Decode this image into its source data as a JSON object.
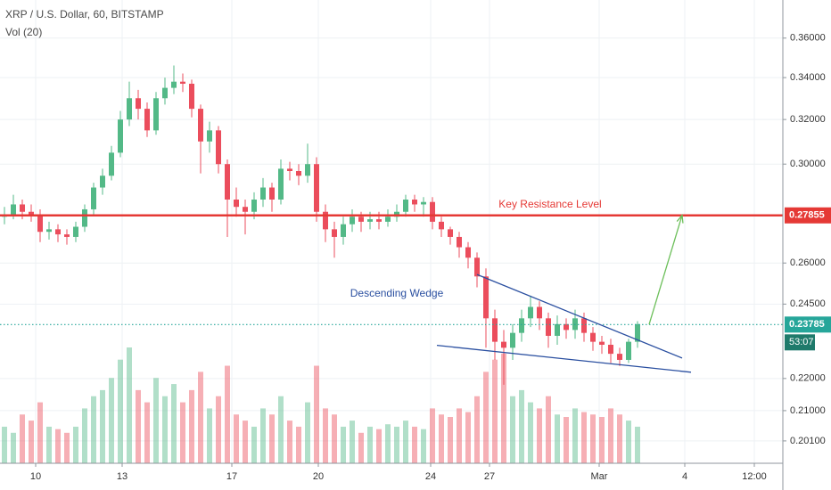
{
  "chart_data": {
    "type": "candlestick",
    "title": "XRP / U.S. Dollar, 60, BITSTAMP",
    "subtitle": "Vol (20)",
    "x": [
      0,
      1,
      2,
      3,
      4,
      5,
      6,
      7,
      8,
      9,
      10,
      11,
      12,
      13,
      14,
      15,
      16,
      17,
      18,
      19,
      20,
      21,
      22,
      23,
      24,
      25,
      26,
      27,
      28,
      29,
      30,
      31,
      32,
      33,
      34,
      35,
      36,
      37,
      38,
      39,
      40,
      41,
      42,
      43,
      44,
      45,
      46,
      47,
      48,
      49,
      50,
      51,
      52,
      53,
      54,
      55,
      56,
      57,
      58,
      59,
      60,
      61,
      62,
      63,
      64,
      65,
      66,
      67,
      68,
      69,
      70,
      71
    ],
    "open": [
      0.278,
      0.279,
      0.283,
      0.28,
      0.279,
      0.272,
      0.273,
      0.271,
      0.27,
      0.274,
      0.281,
      0.29,
      0.295,
      0.305,
      0.32,
      0.33,
      0.325,
      0.315,
      0.33,
      0.335,
      0.338,
      0.337,
      0.325,
      0.31,
      0.315,
      0.3,
      0.285,
      0.282,
      0.28,
      0.285,
      0.29,
      0.285,
      0.298,
      0.297,
      0.295,
      0.3,
      0.28,
      0.273,
      0.27,
      0.275,
      0.278,
      0.276,
      0.277,
      0.276,
      0.278,
      0.28,
      0.285,
      0.283,
      0.284,
      0.276,
      0.273,
      0.27,
      0.266,
      0.262,
      0.255,
      0.24,
      0.232,
      0.23,
      0.235,
      0.24,
      0.244,
      0.24,
      0.234,
      0.238,
      0.236,
      0.24,
      0.235,
      0.232,
      0.231,
      0.228,
      0.226,
      0.232
    ],
    "high": [
      0.282,
      0.287,
      0.285,
      0.283,
      0.281,
      0.276,
      0.275,
      0.273,
      0.276,
      0.283,
      0.292,
      0.298,
      0.308,
      0.324,
      0.338,
      0.334,
      0.328,
      0.333,
      0.34,
      0.346,
      0.342,
      0.339,
      0.327,
      0.319,
      0.317,
      0.302,
      0.29,
      0.285,
      0.288,
      0.294,
      0.292,
      0.302,
      0.301,
      0.3,
      0.309,
      0.303,
      0.283,
      0.276,
      0.278,
      0.281,
      0.28,
      0.28,
      0.28,
      0.281,
      0.283,
      0.287,
      0.287,
      0.286,
      0.286,
      0.278,
      0.274,
      0.272,
      0.268,
      0.264,
      0.258,
      0.243,
      0.236,
      0.238,
      0.243,
      0.248,
      0.246,
      0.242,
      0.241,
      0.24,
      0.243,
      0.242,
      0.237,
      0.234,
      0.233,
      0.23,
      0.233,
      0.239
    ],
    "low": [
      0.275,
      0.277,
      0.277,
      0.276,
      0.268,
      0.269,
      0.268,
      0.267,
      0.268,
      0.272,
      0.279,
      0.287,
      0.293,
      0.303,
      0.317,
      0.32,
      0.312,
      0.313,
      0.327,
      0.332,
      0.333,
      0.321,
      0.296,
      0.305,
      0.296,
      0.27,
      0.278,
      0.271,
      0.277,
      0.282,
      0.28,
      0.283,
      0.293,
      0.291,
      0.292,
      0.276,
      0.268,
      0.262,
      0.267,
      0.272,
      0.272,
      0.273,
      0.273,
      0.274,
      0.276,
      0.278,
      0.28,
      0.278,
      0.273,
      0.27,
      0.267,
      0.262,
      0.258,
      0.251,
      0.23,
      0.226,
      0.218,
      0.226,
      0.232,
      0.237,
      0.236,
      0.23,
      0.231,
      0.233,
      0.233,
      0.232,
      0.229,
      0.228,
      0.225,
      0.224,
      0.225,
      0.23
    ],
    "close": [
      0.279,
      0.283,
      0.28,
      0.279,
      0.272,
      0.273,
      0.271,
      0.27,
      0.274,
      0.281,
      0.29,
      0.295,
      0.305,
      0.32,
      0.33,
      0.325,
      0.315,
      0.33,
      0.335,
      0.338,
      0.337,
      0.325,
      0.31,
      0.315,
      0.3,
      0.285,
      0.282,
      0.28,
      0.285,
      0.29,
      0.285,
      0.298,
      0.297,
      0.295,
      0.3,
      0.28,
      0.273,
      0.27,
      0.275,
      0.278,
      0.276,
      0.277,
      0.276,
      0.278,
      0.28,
      0.285,
      0.283,
      0.284,
      0.276,
      0.273,
      0.27,
      0.266,
      0.262,
      0.255,
      0.24,
      0.232,
      0.23,
      0.235,
      0.24,
      0.244,
      0.24,
      0.234,
      0.238,
      0.236,
      0.24,
      0.235,
      0.232,
      0.231,
      0.228,
      0.226,
      0.232,
      0.238
    ],
    "volume": [
      30,
      25,
      40,
      35,
      50,
      30,
      28,
      25,
      30,
      45,
      55,
      60,
      70,
      85,
      95,
      60,
      50,
      70,
      55,
      65,
      50,
      60,
      75,
      45,
      55,
      80,
      40,
      35,
      30,
      45,
      40,
      55,
      35,
      30,
      50,
      80,
      45,
      40,
      30,
      35,
      25,
      30,
      28,
      32,
      30,
      35,
      30,
      28,
      45,
      40,
      38,
      45,
      42,
      55,
      75,
      85,
      90,
      55,
      60,
      50,
      45,
      55,
      40,
      38,
      45,
      42,
      40,
      38,
      45,
      40,
      35,
      30
    ],
    "up_color": "#53b987",
    "down_color": "#eb4d5c",
    "log": true,
    "grid": true,
    "ylim": [
      0.1946,
      0.3804
    ],
    "yticks": [
      {
        "value": 0.36,
        "label": "0.36000"
      },
      {
        "value": 0.34,
        "label": "0.34000"
      },
      {
        "value": 0.32,
        "label": "0.32000"
      },
      {
        "value": 0.3,
        "label": "0.30000"
      },
      {
        "value": 0.26,
        "label": "0.26000"
      },
      {
        "value": 0.245,
        "label": "0.24500"
      },
      {
        "value": 0.22,
        "label": "0.22000"
      },
      {
        "value": 0.21,
        "label": "0.21000"
      },
      {
        "value": 0.201,
        "label": "0.20100"
      }
    ],
    "xlim": [
      -0.5,
      87.3
    ],
    "xticks": [
      {
        "value": 3.5,
        "label": "10"
      },
      {
        "value": 13.2,
        "label": "13"
      },
      {
        "value": 25.5,
        "label": "17"
      },
      {
        "value": 35.2,
        "label": "20"
      },
      {
        "value": 47.8,
        "label": "24"
      },
      {
        "value": 54.4,
        "label": "27"
      },
      {
        "value": 66.7,
        "label": "Mar"
      },
      {
        "value": 76.3,
        "label": "4"
      },
      {
        "value": 84.1,
        "label": "12:00"
      }
    ],
    "levels": [
      {
        "value": 0.27855,
        "color": "#e53935"
      },
      {
        "value": 0.23785,
        "color": "#26a69a"
      }
    ],
    "countdown": "53:07",
    "trendlines": [
      {
        "x": [
          53,
          76
        ],
        "y": [
          0.2557,
          0.2266
        ]
      },
      {
        "x": [
          48.5,
          77
        ],
        "y": [
          0.2308,
          0.222
        ]
      }
    ],
    "trendline_color": "#2a4fa0",
    "arrow": {
      "x": [
        72.3,
        76
      ],
      "y": [
        0.2379,
        0.2786
      ]
    },
    "arrow_color": "#6cbf5a",
    "annotations": [
      "Key Resistance Level",
      "Descending Wedge"
    ]
  }
}
